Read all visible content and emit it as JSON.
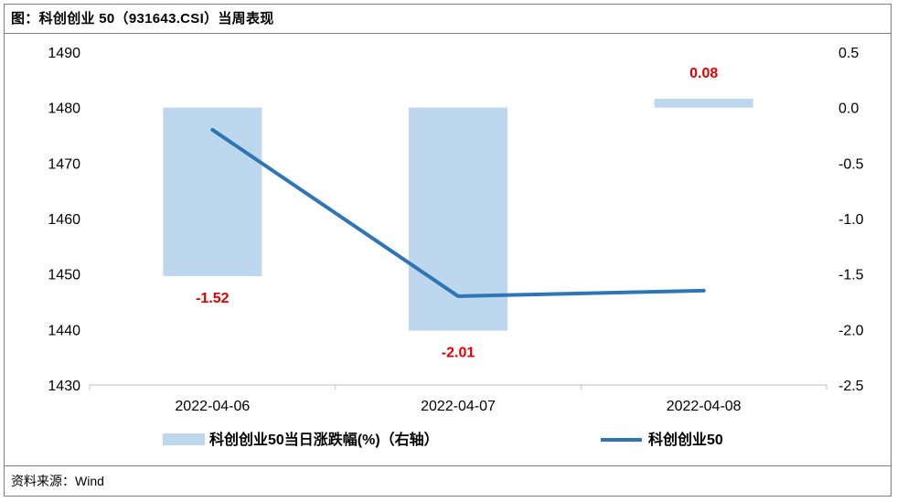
{
  "title": "图：科创创业 50（931643.CSI）当周表现",
  "source": "资料来源：Wind",
  "colors": {
    "bar": "#bdd7ee",
    "line": "#2e75b6",
    "label": "#e00000"
  },
  "chart_data": {
    "type": "bar+line",
    "categories": [
      "2022-04-06",
      "2022-04-07",
      "2022-04-08"
    ],
    "series": [
      {
        "name": "科创创业50当日涨跌幅(%)（右轴）",
        "type": "bar",
        "axis": "right",
        "values": [
          -1.52,
          -2.01,
          0.08
        ],
        "labels": [
          "-1.52",
          "-2.01",
          "0.08"
        ]
      },
      {
        "name": "科创创业50",
        "type": "line",
        "axis": "left",
        "values": [
          1476,
          1446,
          1447
        ]
      }
    ],
    "y_left": {
      "range": [
        1430,
        1490
      ],
      "ticks": [
        "1430",
        "1440",
        "1450",
        "1460",
        "1470",
        "1480",
        "1490"
      ]
    },
    "y_right": {
      "range": [
        -2.5,
        0.5
      ],
      "ticks": [
        "-2.5",
        "-2.0",
        "-1.5",
        "-1.0",
        "-0.5",
        "0.0",
        "0.5"
      ]
    },
    "legend_position": "bottom",
    "grid": false
  }
}
